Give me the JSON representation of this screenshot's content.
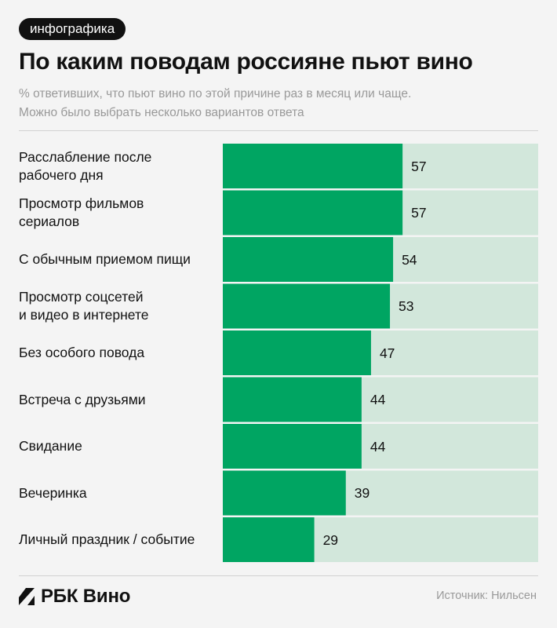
{
  "badge": "инфографика",
  "title": "По каким поводам россияне пьют вино",
  "subtitle_line1": "% ответивших, что пьют вино по этой причине раз в месяц или чаще.",
  "subtitle_line2": "Можно было выбрать несколько вариантов ответа",
  "colors": {
    "bar": "#00a562",
    "track": "#d2e7db",
    "text": "#111111",
    "muted": "#999999"
  },
  "chart_data": {
    "type": "bar",
    "orientation": "horizontal",
    "title": "По каким поводам россияне пьют вино",
    "categories": [
      "Расслабление после рабочего дня",
      "Просмотр фильмов сериалов",
      "С обычным приемом пищи",
      "Просмотр соцсетей и видео в интернете",
      "Без особого повода",
      "Встреча с друзьями",
      "Свидание",
      "Вечеринка",
      "Личный праздник / событие"
    ],
    "label_lines": [
      [
        "Расслабление после",
        "рабочего дня"
      ],
      [
        "Просмотр фильмов",
        "сериалов"
      ],
      [
        "С обычным приемом пищи"
      ],
      [
        "Просмотр соцсетей",
        "и видео в интернете"
      ],
      [
        "Без особого повода"
      ],
      [
        "Встреча с друзьями"
      ],
      [
        "Свидание"
      ],
      [
        "Вечеринка"
      ],
      [
        "Личный праздник / событие"
      ]
    ],
    "values": [
      57,
      57,
      54,
      53,
      47,
      44,
      44,
      39,
      29
    ],
    "unit": "%",
    "xlim": [
      0,
      100
    ],
    "xlabel": "",
    "ylabel": ""
  },
  "footer": {
    "logo_text": "РБК Вино",
    "source": "Источник: Нильсен"
  }
}
